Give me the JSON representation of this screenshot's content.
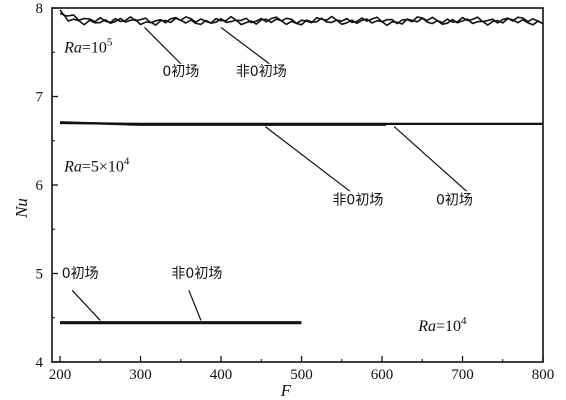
{
  "chart_data": {
    "type": "line",
    "title": "",
    "xlabel": "F",
    "ylabel": "Nu",
    "xlim": [
      190,
      800
    ],
    "ylim": [
      4,
      8
    ],
    "xticks": [
      "200",
      "300",
      "400",
      "500",
      "600",
      "700",
      "800"
    ],
    "yticks": [
      "4",
      "5",
      "6",
      "7",
      "8"
    ],
    "grid": false,
    "series": [
      {
        "group": "Ra=10^5",
        "kind": "0-initial",
        "noisy": true,
        "x": [
          200,
          210,
          230,
          250,
          300,
          350,
          400,
          450,
          500,
          550,
          600,
          650,
          700,
          750,
          800
        ],
        "y": [
          7.93,
          7.87,
          7.84,
          7.86,
          7.84,
          7.85,
          7.84,
          7.85,
          7.84,
          7.85,
          7.84,
          7.85,
          7.84,
          7.85,
          7.84
        ]
      },
      {
        "group": "Ra=10^5",
        "kind": "non-0-initial",
        "noisy": true,
        "x": [
          200,
          210,
          230,
          250,
          300,
          350,
          400,
          450,
          500,
          550,
          600,
          650,
          700,
          750,
          800
        ],
        "y": [
          7.98,
          7.9,
          7.86,
          7.87,
          7.86,
          7.87,
          7.86,
          7.87,
          7.86,
          7.87,
          7.86,
          7.87,
          7.86,
          7.87,
          7.86
        ]
      },
      {
        "group": "Ra=5x10^4",
        "kind": "0-initial",
        "noisy": false,
        "x": [
          200,
          300,
          400,
          500,
          600,
          700,
          800
        ],
        "y": [
          6.7,
          6.69,
          6.69,
          6.69,
          6.69,
          6.69,
          6.69
        ]
      },
      {
        "group": "Ra=5x10^4",
        "kind": "non-0-initial",
        "noisy": false,
        "x": [
          200,
          300,
          400,
          500,
          605
        ],
        "y": [
          6.71,
          6.68,
          6.68,
          6.68,
          6.68
        ]
      },
      {
        "group": "Ra=10^4",
        "kind": "0-initial",
        "noisy": false,
        "x": [
          200,
          300,
          400,
          500
        ],
        "y": [
          4.45,
          4.45,
          4.45,
          4.45
        ]
      },
      {
        "group": "Ra=10^4",
        "kind": "non-0-initial",
        "noisy": false,
        "x": [
          200,
          300,
          400,
          500
        ],
        "y": [
          4.44,
          4.44,
          4.44,
          4.44
        ]
      }
    ],
    "annotations": [
      {
        "text": "0初场",
        "text_x": 350,
        "text_y": 7.23,
        "leader_from": [
          350,
          7.37
        ],
        "leader_to": [
          305,
          7.78
        ]
      },
      {
        "text": "非0初场",
        "text_x": 450,
        "text_y": 7.23,
        "leader_from": [
          460,
          7.37
        ],
        "leader_to": [
          400,
          7.78
        ]
      },
      {
        "text": "非0初场",
        "text_x": 570,
        "text_y": 5.78,
        "leader_from": [
          560,
          5.93
        ],
        "leader_to": [
          455,
          6.66
        ]
      },
      {
        "text": "0初场",
        "text_x": 690,
        "text_y": 5.78,
        "leader_from": [
          705,
          5.93
        ],
        "leader_to": [
          615,
          6.66
        ]
      },
      {
        "text": "0初场",
        "text_x": 225,
        "text_y": 4.95,
        "leader_from": [
          215,
          4.81
        ],
        "leader_to": [
          250,
          4.47
        ]
      },
      {
        "text": "非0初场",
        "text_x": 370,
        "text_y": 4.95,
        "leader_from": [
          360,
          4.81
        ],
        "leader_to": [
          375,
          4.47
        ]
      }
    ],
    "ra_labels": [
      {
        "name": "Ra=10^5",
        "base": "Ra",
        "eq": "=10",
        "sup": "5",
        "x": 205,
        "y": 7.5
      },
      {
        "name": "Ra=5x10^4",
        "base": "Ra",
        "eq": "=5×10",
        "sup": "4",
        "x": 205,
        "y": 6.15
      },
      {
        "name": "Ra=10^4",
        "base": "Ra",
        "eq": "=10",
        "sup": "4",
        "x": 645,
        "y": 4.35
      }
    ]
  }
}
